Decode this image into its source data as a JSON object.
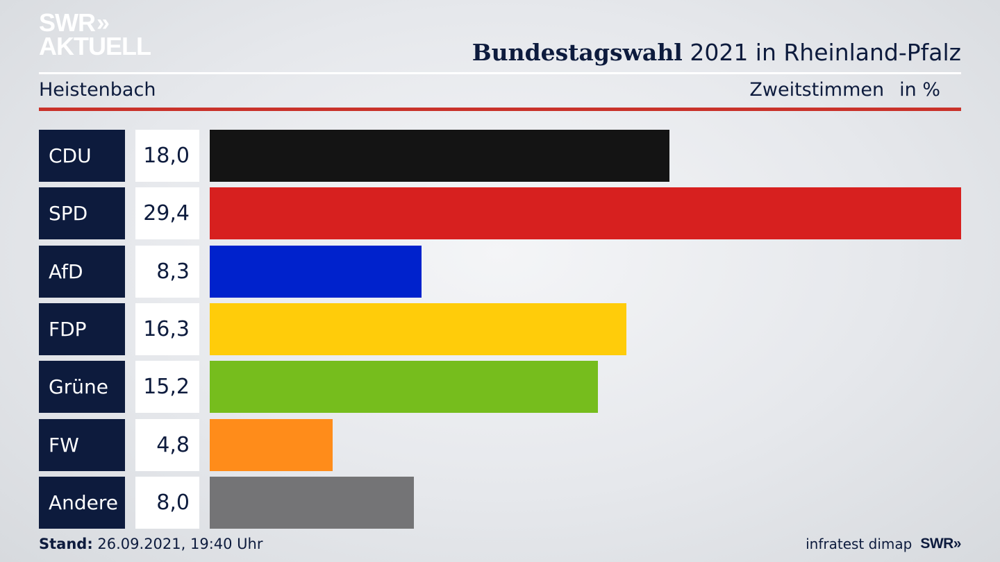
{
  "brand": {
    "line1": "SWR",
    "line2": "AKTUELL",
    "arrows": "»"
  },
  "header": {
    "title_bold": "Bundestagswahl",
    "title_rest": " 2021 in Rheinland-Pfalz"
  },
  "subheader": {
    "location": "Heistenbach",
    "measure": "Zweitstimmen",
    "unit": "in %"
  },
  "footer": {
    "stand_label": "Stand:",
    "stand_value": " 26.09.2021, 19:40 Uhr",
    "source": "infratest dimap",
    "logo": "SWR»"
  },
  "colors": {
    "accent_red": "#c9322a",
    "navy": "#0d1b3d"
  },
  "chart_data": {
    "type": "bar",
    "orientation": "horizontal",
    "categories": [
      "CDU",
      "SPD",
      "AfD",
      "FDP",
      "Grüne",
      "FW",
      "Andere"
    ],
    "values": [
      18.0,
      29.4,
      8.3,
      16.3,
      15.2,
      4.8,
      8.0
    ],
    "value_labels": [
      "18,0",
      "29,4",
      "8,3",
      "16,3",
      "15,2",
      "4,8",
      "8,0"
    ],
    "colors": [
      "#141414",
      "#d7201f",
      "#0022cc",
      "#ffcc0a",
      "#76bd1d",
      "#ff8c1a",
      "#747476"
    ],
    "xlim": [
      0,
      29.4
    ]
  }
}
